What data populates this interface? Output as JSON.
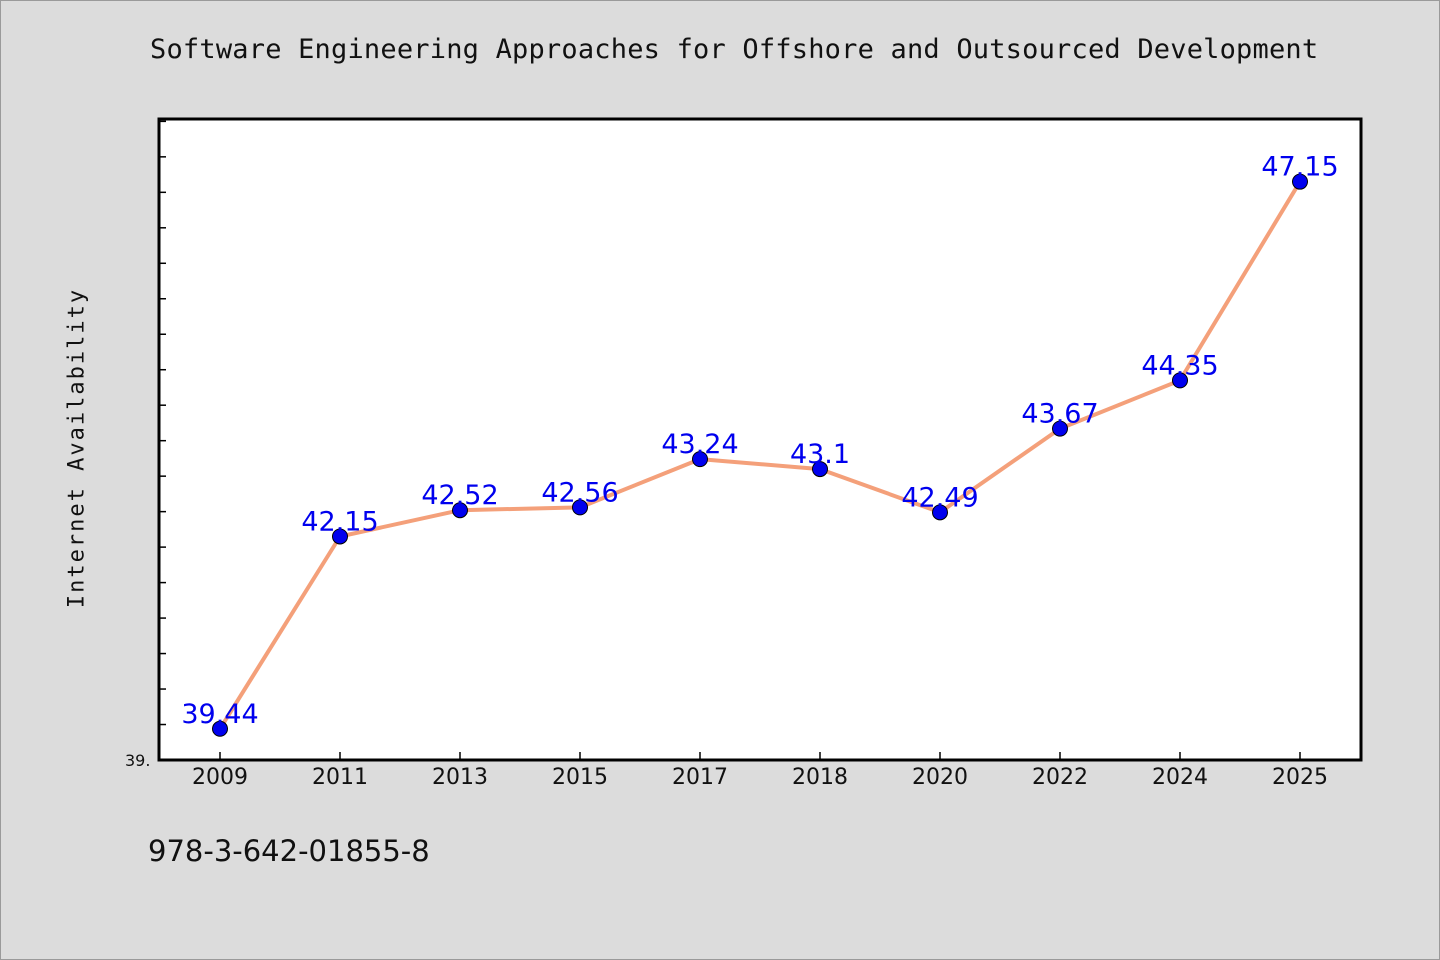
{
  "chart_data": {
    "type": "line",
    "title": "Software Engineering Approaches for Offshore and Outsourced Development",
    "xlabel": "",
    "ylabel": "Internet Availability",
    "categories": [
      "2009",
      "2011",
      "2013",
      "2015",
      "2017",
      "2018",
      "2020",
      "2022",
      "2024",
      "2025"
    ],
    "series": [
      {
        "values": [
          39.44,
          42.15,
          42.52,
          42.56,
          43.24,
          43.1,
          42.49,
          43.67,
          44.35,
          47.15
        ],
        "labels": [
          "39.44",
          "42.15",
          "42.52",
          "42.56",
          "43.24",
          "43.1",
          "42.49",
          "43.67",
          "44.35",
          "47.15"
        ],
        "line_color": "#f4a07a",
        "marker_color": "#0000ee"
      }
    ],
    "ylim": [
      39.0,
      48.0
    ],
    "y_min_tick_label": "39.",
    "grid": false,
    "legend": "none"
  },
  "footer": {
    "isbn": "978-3-642-01855-8"
  }
}
